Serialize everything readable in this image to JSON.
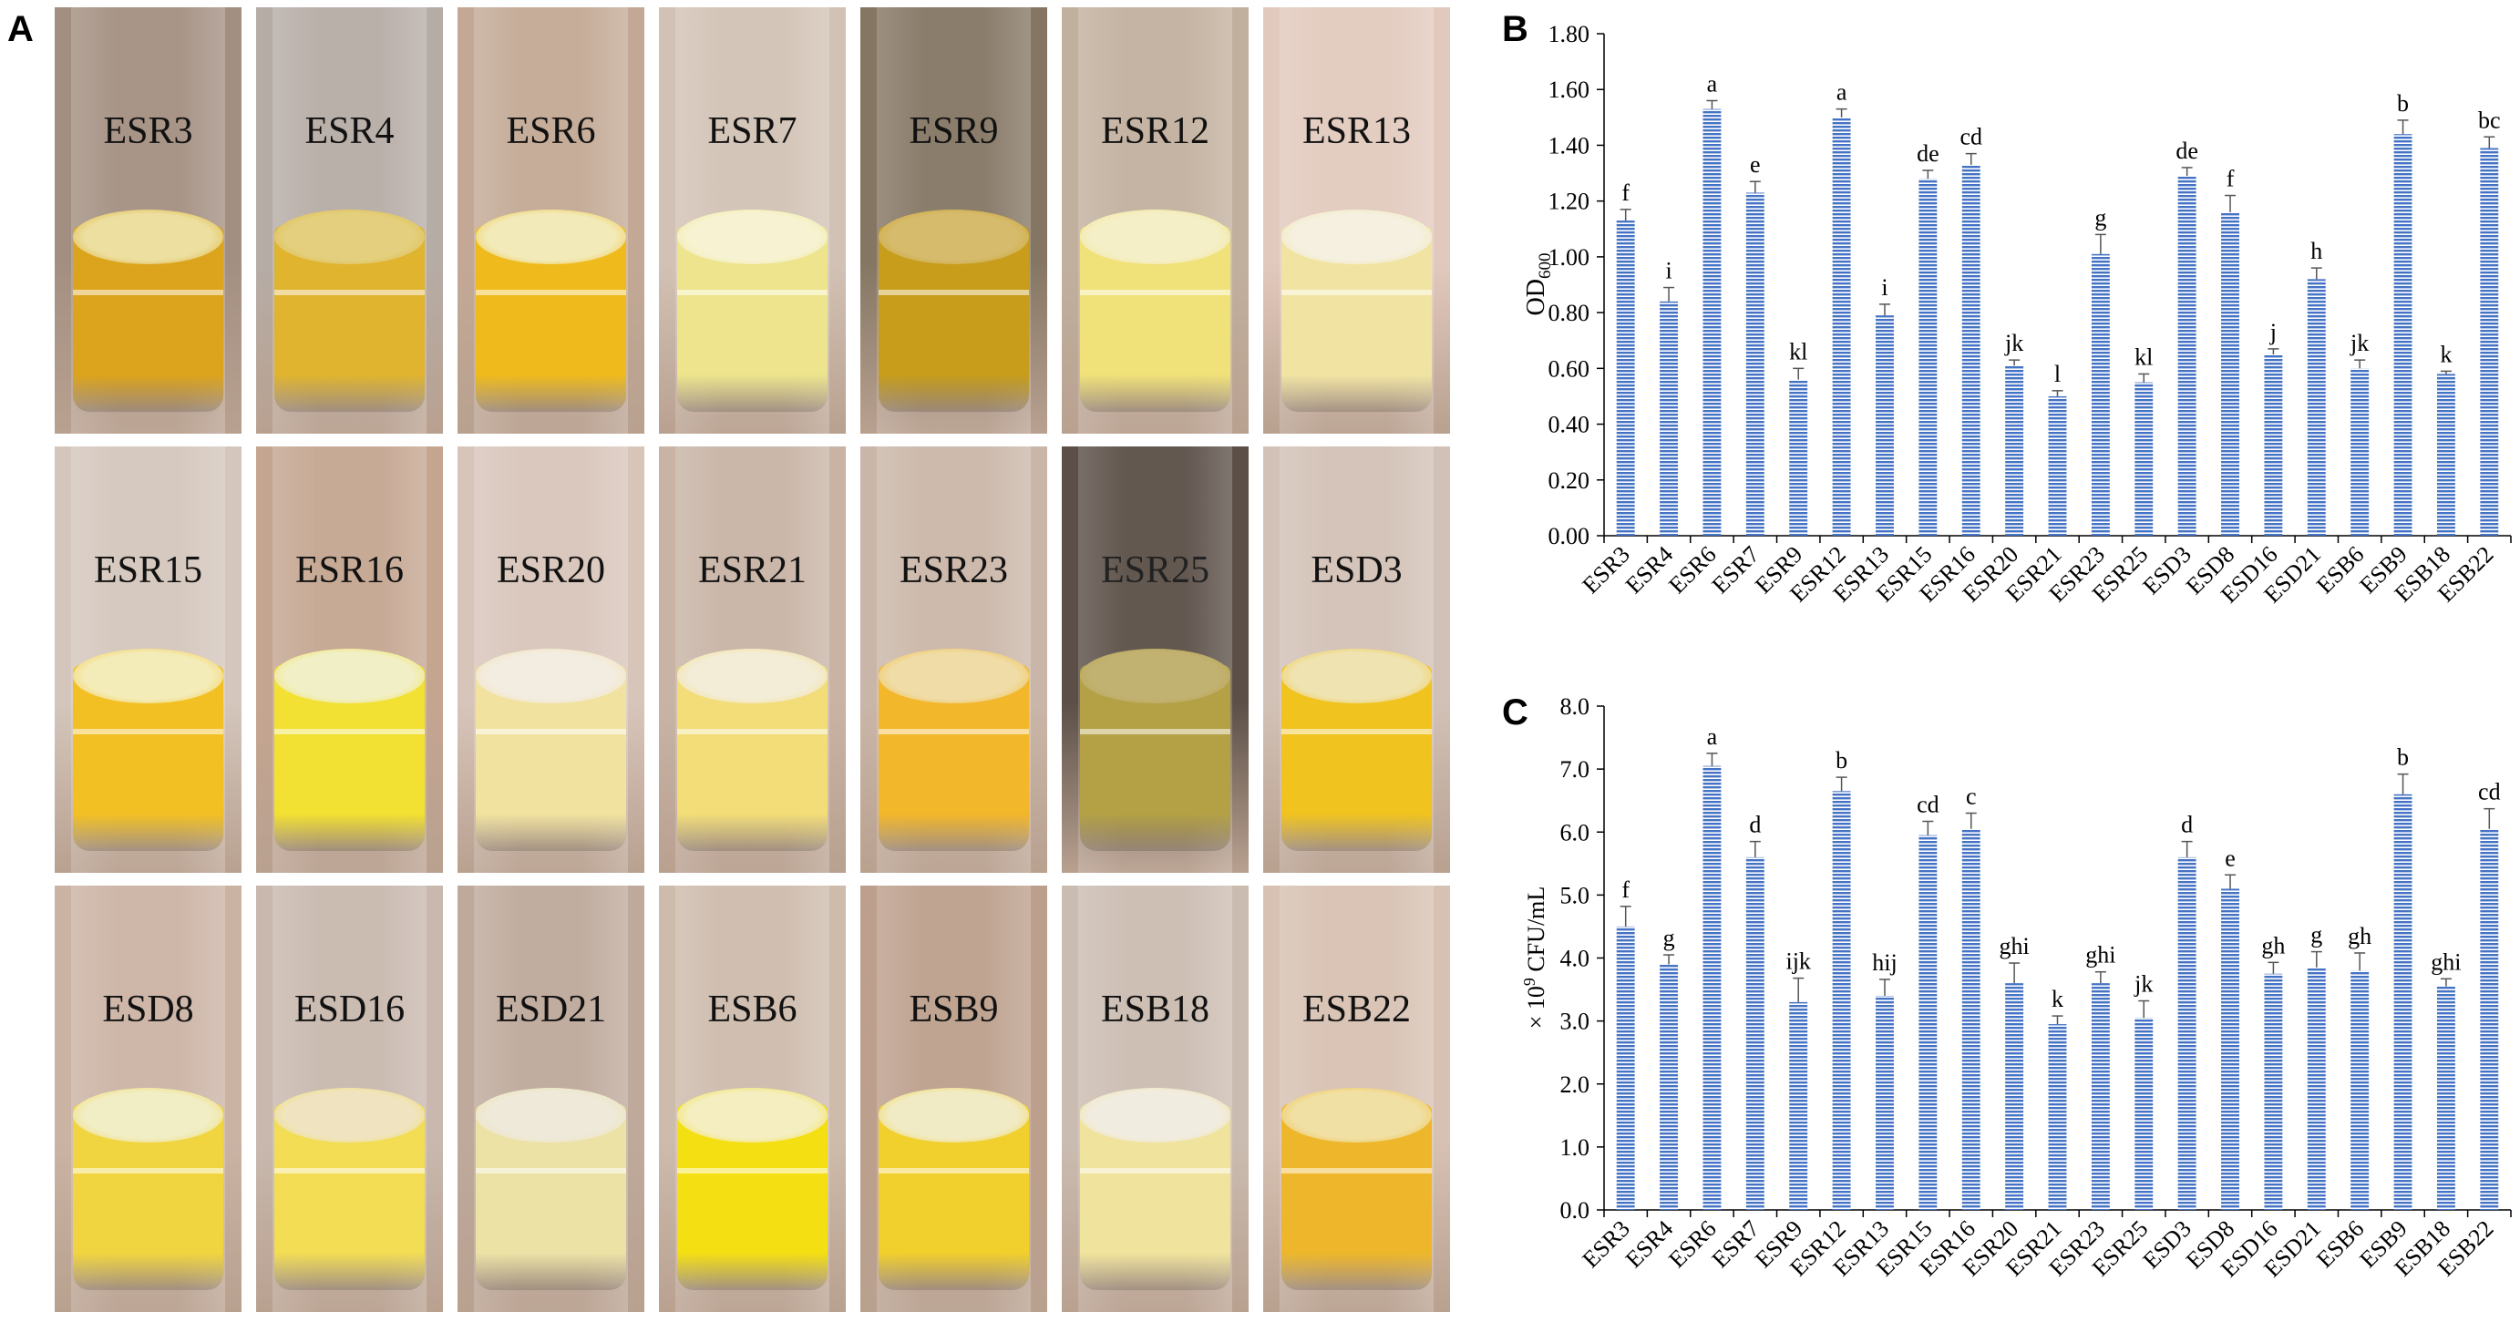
{
  "panel_labels": {
    "a": "A",
    "b": "B",
    "c": "C"
  },
  "photo_grid": {
    "tubes": [
      {
        "label": "ESR3",
        "bg": "#a38f81",
        "liquid": "#dca41c",
        "surface": "#ecdf9f"
      },
      {
        "label": "ESR4",
        "bg": "#b6aca6",
        "liquid": "#e0b42f",
        "surface": "#e3cf7e"
      },
      {
        "label": "ESR6",
        "bg": "#c3a995",
        "liquid": "#efbb1c",
        "surface": "#f2eab9"
      },
      {
        "label": "ESR7",
        "bg": "#d2c2b5",
        "liquid": "#ede48d",
        "surface": "#f7f3d2"
      },
      {
        "label": "ESR9",
        "bg": "#857664",
        "liquid": "#c79d1b",
        "surface": "#d6bb6d"
      },
      {
        "label": "ESR12",
        "bg": "#c2b09e",
        "liquid": "#f0e179",
        "surface": "#f5efc8"
      },
      {
        "label": "ESR13",
        "bg": "#e2c9bd",
        "liquid": "#f1e4a3",
        "surface": "#f5f0e0"
      },
      {
        "label": "ESR15",
        "bg": "#d4c6bc",
        "liquid": "#f2c023",
        "surface": "#f4ecb8"
      },
      {
        "label": "ESR16",
        "bg": "#c4a590",
        "liquid": "#f2e032",
        "surface": "#f1efc6"
      },
      {
        "label": "ESR20",
        "bg": "#d8c5ba",
        "liquid": "#f1e2a0",
        "surface": "#f3ece0"
      },
      {
        "label": "ESR21",
        "bg": "#c8b3a5",
        "liquid": "#f2dd78",
        "surface": "#f3ecd6"
      },
      {
        "label": "ESR23",
        "bg": "#cab6a8",
        "liquid": "#f2b72a",
        "surface": "#f0dca6"
      },
      {
        "label": "ESR25",
        "bg": "#5b4f47",
        "liquid": "#b4a146",
        "surface": "#c2b272"
      },
      {
        "label": "ESD3",
        "bg": "#d2c1b6",
        "liquid": "#f0c31f",
        "surface": "#efe3b1"
      },
      {
        "label": "ESD8",
        "bg": "#cbb3a4",
        "liquid": "#f1d540",
        "surface": "#f1edc4"
      },
      {
        "label": "ESD16",
        "bg": "#c8b8ae",
        "liquid": "#f2dd55",
        "surface": "#f0e4c0"
      },
      {
        "label": "ESD21",
        "bg": "#bea99b",
        "liquid": "#ece2a6",
        "surface": "#eee9d8"
      },
      {
        "label": "ESB6",
        "bg": "#cdbbac",
        "liquid": "#f4df13",
        "surface": "#f4eec0"
      },
      {
        "label": "ESB9",
        "bg": "#bc9f8c",
        "liquid": "#f1cf2d",
        "surface": "#f1ebc5"
      },
      {
        "label": "ESB18",
        "bg": "#cbbcb1",
        "liquid": "#f0e39d",
        "surface": "#f1ece0"
      },
      {
        "label": "ESB22",
        "bg": "#d7c1b2",
        "liquid": "#eeb72b",
        "surface": "#f1e0a4"
      }
    ]
  },
  "chart_data": [
    {
      "type": "bar",
      "panel": "B",
      "title": "",
      "xlabel": "",
      "ylabel_main": "OD",
      "ylabel_sub": "600",
      "categories": [
        "ESR3",
        "ESR4",
        "ESR6",
        "ESR7",
        "ESR9",
        "ESR12",
        "ESR13",
        "ESR15",
        "ESR16",
        "ESR20",
        "ESR21",
        "ESR23",
        "ESR25",
        "ESD3",
        "ESD8",
        "ESD16",
        "ESD21",
        "ESB6",
        "ESB9",
        "ESB18",
        "ESB22"
      ],
      "values": [
        1.13,
        0.84,
        1.53,
        1.23,
        0.56,
        1.5,
        0.79,
        1.28,
        1.33,
        0.61,
        0.5,
        1.01,
        0.55,
        1.29,
        1.16,
        0.65,
        0.92,
        0.6,
        1.44,
        0.58,
        1.39
      ],
      "errors": [
        0.04,
        0.05,
        0.03,
        0.04,
        0.04,
        0.03,
        0.04,
        0.03,
        0.04,
        0.02,
        0.02,
        0.07,
        0.03,
        0.03,
        0.06,
        0.02,
        0.04,
        0.03,
        0.05,
        0.01,
        0.04
      ],
      "letters": [
        "f",
        "i",
        "a",
        "e",
        "kl",
        "a",
        "i",
        "de",
        "cd",
        "jk",
        "l",
        "g",
        "kl",
        "de",
        "f",
        "j",
        "h",
        "jk",
        "b",
        "k",
        "bc"
      ],
      "ylim": [
        0,
        1.8
      ],
      "yticks": [
        "0.00",
        "0.20",
        "0.40",
        "0.60",
        "0.80",
        "1.00",
        "1.20",
        "1.40",
        "1.60",
        "1.80"
      ],
      "ytick_values": [
        0,
        0.2,
        0.4,
        0.6,
        0.8,
        1.0,
        1.2,
        1.4,
        1.6,
        1.8
      ],
      "bar_color": "#4472c4"
    },
    {
      "type": "bar",
      "panel": "C",
      "title": "",
      "xlabel": "",
      "ylabel_prefix": "× 10",
      "ylabel_sup": "9",
      "ylabel_suffix": " CFU/mL",
      "categories": [
        "ESR3",
        "ESR4",
        "ESR6",
        "ESR7",
        "ESR9",
        "ESR12",
        "ESR13",
        "ESR15",
        "ESR16",
        "ESR20",
        "ESR21",
        "ESR23",
        "ESR25",
        "ESD3",
        "ESD8",
        "ESD16",
        "ESD21",
        "ESB6",
        "ESB9",
        "ESB18",
        "ESB22"
      ],
      "values": [
        4.5,
        3.9,
        7.05,
        5.6,
        3.3,
        6.65,
        3.4,
        5.95,
        6.05,
        3.6,
        2.95,
        3.6,
        3.05,
        5.6,
        5.1,
        3.75,
        3.85,
        3.8,
        6.6,
        3.55,
        6.05
      ],
      "errors": [
        0.32,
        0.15,
        0.2,
        0.25,
        0.38,
        0.22,
        0.26,
        0.22,
        0.25,
        0.32,
        0.13,
        0.18,
        0.27,
        0.25,
        0.22,
        0.18,
        0.25,
        0.28,
        0.32,
        0.12,
        0.32
      ],
      "letters": [
        "f",
        "g",
        "a",
        "d",
        "ijk",
        "b",
        "hij",
        "cd",
        "c",
        "ghi",
        "k",
        "ghi",
        "jk",
        "d",
        "e",
        "gh",
        "g",
        "gh",
        "b",
        "ghi",
        "cd"
      ],
      "ylim": [
        0,
        8.0
      ],
      "yticks": [
        "0.0",
        "1.0",
        "2.0",
        "3.0",
        "4.0",
        "5.0",
        "6.0",
        "7.0",
        "8.0"
      ],
      "ytick_values": [
        0,
        1,
        2,
        3,
        4,
        5,
        6,
        7,
        8
      ],
      "bar_color": "#4472c4"
    }
  ]
}
